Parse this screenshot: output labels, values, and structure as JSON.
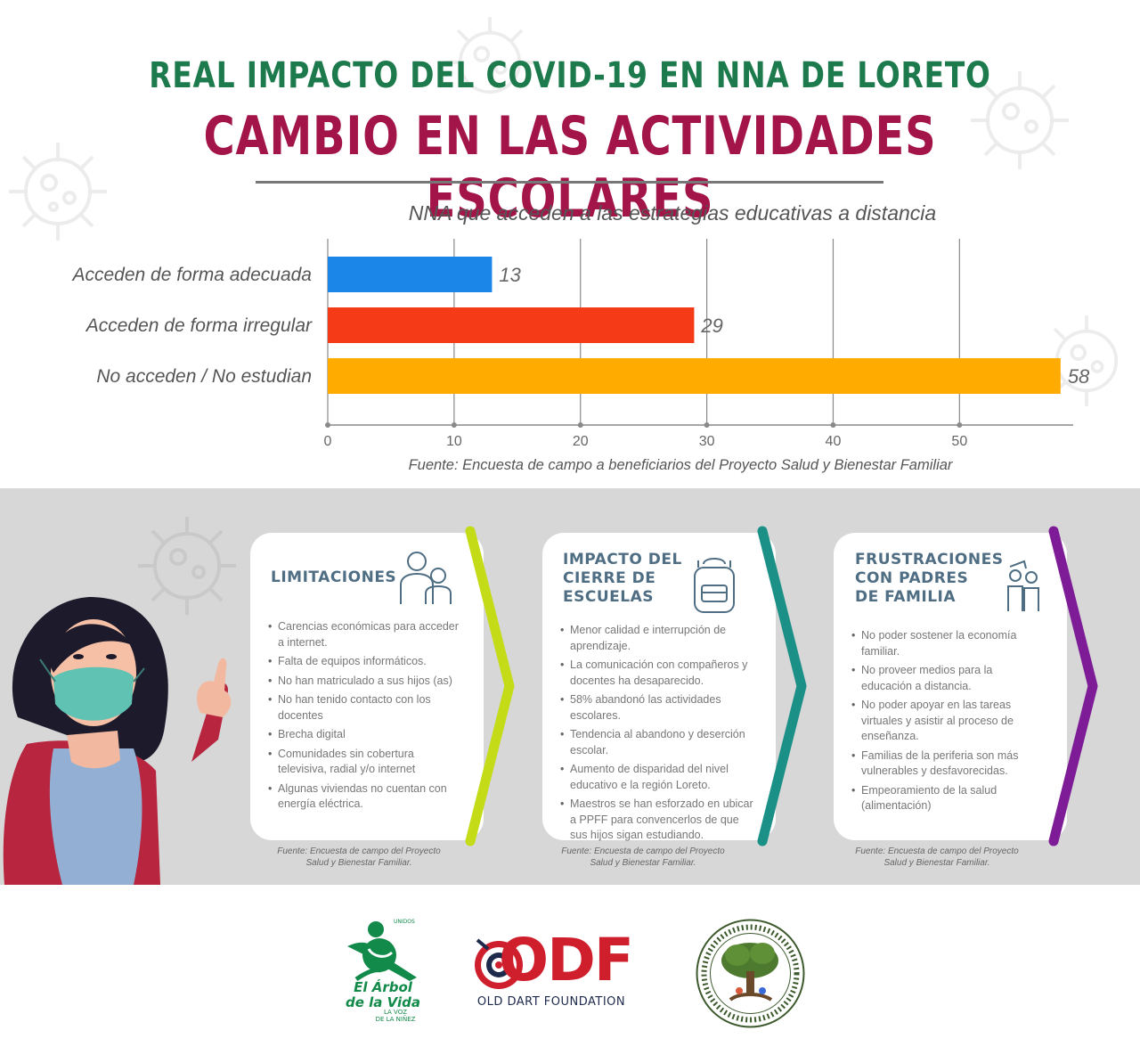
{
  "header": {
    "title": "REAL IMPACTO DEL COVID-19 EN NNA DE LORETO",
    "subtitle": "CAMBIO EN LAS ACTIVIDADES ESCOLARES"
  },
  "colors": {
    "title_green": "#1d7a4c",
    "title_crimson": "#a31548",
    "bar_blue": "#1c86e8",
    "bar_red": "#f43a17",
    "bar_orange": "#ffab00",
    "chevron_lime": "#c4dc18",
    "chevron_teal": "#1b9086",
    "chevron_purple": "#7d1c96"
  },
  "chart_data": {
    "type": "bar",
    "orientation": "horizontal",
    "title": "NNA que acceden a las estrategias educativas a distancia",
    "categories": [
      "Acceden de forma adecuada",
      "Acceden de forma irregular",
      "No acceden / No estudian"
    ],
    "values": [
      13,
      29,
      58
    ],
    "value_labels": [
      "13",
      "29",
      "58"
    ],
    "bar_colors": [
      "#1c86e8",
      "#f43a17",
      "#ffab00"
    ],
    "xlim": [
      0,
      59
    ],
    "xticks": [
      0,
      10,
      20,
      30,
      40,
      50
    ],
    "xtick_labels": [
      "0",
      "10",
      "20",
      "30",
      "40",
      "50"
    ],
    "grid": true,
    "source": "Fuente: Encuesta de campo a beneficiarios del Proyecto Salud y Bienestar Familiar"
  },
  "cards": [
    {
      "title": "LIMITACIONES",
      "icon": "parent-child-icon",
      "items": [
        "Carencias económicas para acceder a internet.",
        "Falta de equipos informáticos.",
        "No han matriculado a sus hijos (as)",
        "No han tenido contacto con los docentes",
        "Brecha digital",
        "Comunidades sin cobertura televisiva, radial y/o internet",
        "Algunas viviendas no cuentan con energía eléctrica."
      ],
      "note": "Fuente: Encuesta de campo del Proyecto Salud y Bienestar Familiar."
    },
    {
      "title": "IMPACTO DEL\nCIERRE DE\nESCUELAS",
      "icon": "backpack-icon",
      "items": [
        "Menor calidad e interrupción de aprendizaje.",
        "La comunicación con compañeros y docentes ha desaparecido.",
        "58% abandonó las actividades escolares.",
        "Tendencia al abandono y deserción escolar.",
        "Aumento de disparidad del nivel educativo e la región Loreto.",
        "Maestros se han esforzado en ubicar a PPFF para convencerlos de que sus hijos sigan estudiando."
      ],
      "note": "Fuente: Encuesta de campo del Proyecto Salud y Bienestar Familiar."
    },
    {
      "title": "FRUSTRACIONES\nCON PADRES\nDE FAMILIA",
      "icon": "family-icon",
      "items": [
        "No poder sostener la economía familiar.",
        "No proveer medios para la educación a distancia.",
        "No poder apoyar en las tareas virtuales y asistir al proceso de enseñanza.",
        "Familias de la periferia son más vulnerables y desfavorecidas.",
        "Empeoramiento de la salud (alimentación)"
      ],
      "note": "Fuente: Encuesta de campo del Proyecto Salud y Bienestar Familiar."
    }
  ],
  "logos": {
    "arbol": {
      "name": "El Árbol de la Vida",
      "line1": "El Árbol",
      "line2": "de la Vida",
      "tag1": "LA VOZ",
      "tag2": "DE LA NIÑEZ",
      "top_tag": "UNIDOS"
    },
    "odf": {
      "mark": "ODF",
      "caption": "OLD DART FOUNDATION"
    },
    "seal": {
      "icon": "tree-seal-icon"
    }
  }
}
